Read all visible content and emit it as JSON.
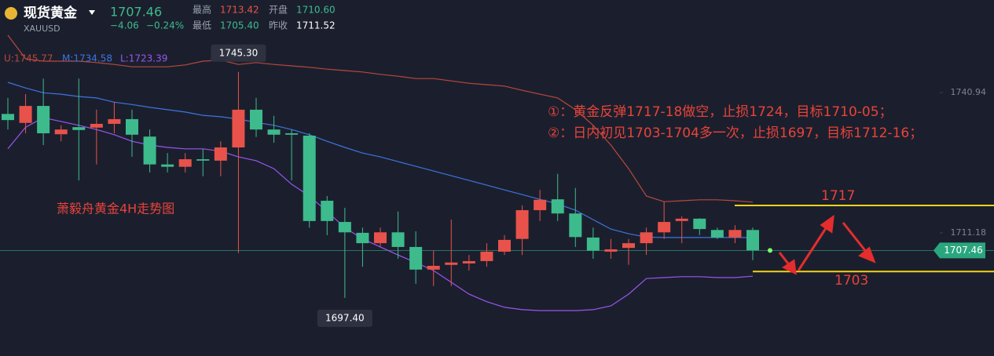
{
  "header": {
    "name": "现货黄金",
    "symbol": "XAUUSD",
    "price": "1707.46",
    "change": "−4.06",
    "change_pct": "−0.24%",
    "high_label": "最高",
    "high": "1713.42",
    "open_label": "开盘",
    "open": "1710.60",
    "low_label": "最低",
    "low": "1705.40",
    "prev_label": "昨收",
    "prev": "1711.52"
  },
  "chart_data": {
    "type": "candlestick",
    "title": "萧毅舟黄金4H走势图",
    "up_color": "#e8524a",
    "down_color": "#3dbb8c",
    "ylim": [
      1685.08,
      1760.56
    ],
    "yticks": [
      1740.94,
      1711.18
    ],
    "open": [
      1736.4,
      1734.5,
      1738.1,
      1732.1,
      1733.6,
      1733.5,
      1734.3,
      1735.3,
      1731.6,
      1725.7,
      1725.2,
      1726.8,
      1726.5,
      1729.3,
      1737.3,
      1733.1,
      1732.3,
      1731.8,
      1718.0,
      1713.5,
      1711.2,
      1709.0,
      1711.3,
      1708.2,
      1703.4,
      1704.4,
      1704.7,
      1705.2,
      1707.2,
      1709.9,
      1716.0,
      1718.3,
      1715.3,
      1710.2,
      1707.2,
      1708.0,
      1709.0,
      1711.3,
      1713.7,
      1714.2,
      1711.8,
      1710.2,
      1711.8
    ],
    "high": [
      1739.8,
      1740.6,
      1743.9,
      1734.0,
      1743.9,
      1737.3,
      1738.9,
      1737.3,
      1733.1,
      1728.1,
      1728.1,
      1729.0,
      1730.6,
      1745.3,
      1739.8,
      1736.0,
      1733.1,
      1732.3,
      1719.0,
      1716.5,
      1712.3,
      1712.3,
      1715.7,
      1711.5,
      1707.4,
      1714.0,
      1706.5,
      1709.0,
      1710.7,
      1717.0,
      1720.3,
      1723.7,
      1720.7,
      1712.3,
      1709.9,
      1709.9,
      1712.3,
      1717.8,
      1714.7,
      1714.3,
      1712.3,
      1712.8,
      1712.3
    ],
    "low": [
      1733.1,
      1732.3,
      1729.8,
      1730.6,
      1722.3,
      1725.7,
      1732.3,
      1727.3,
      1724.0,
      1724.0,
      1724.0,
      1723.2,
      1723.2,
      1706.9,
      1731.5,
      1730.3,
      1722.3,
      1712.3,
      1710.7,
      1697.4,
      1704.0,
      1708.2,
      1705.7,
      1700.4,
      1699.9,
      1699.9,
      1703.2,
      1704.0,
      1706.5,
      1706.5,
      1713.7,
      1713.7,
      1708.2,
      1705.7,
      1705.7,
      1704.4,
      1706.5,
      1709.9,
      1709.0,
      1710.7,
      1709.9,
      1709.0,
      1705.4
    ],
    "close": [
      1735.1,
      1738.1,
      1732.3,
      1733.1,
      1733.0,
      1734.3,
      1735.3,
      1732.0,
      1725.7,
      1725.2,
      1726.8,
      1726.5,
      1729.3,
      1737.3,
      1733.1,
      1732.0,
      1732.0,
      1713.7,
      1713.7,
      1711.3,
      1709.0,
      1711.3,
      1708.2,
      1703.4,
      1704.2,
      1704.9,
      1705.2,
      1707.2,
      1709.7,
      1716.0,
      1718.2,
      1715.3,
      1710.3,
      1707.4,
      1707.7,
      1709.0,
      1711.3,
      1713.5,
      1714.2,
      1712.0,
      1710.2,
      1711.8,
      1707.46
    ],
    "high_label": "1745.30",
    "low_label": "1697.40",
    "last_label": "1707.46",
    "series": [
      {
        "label": "U:1745.77",
        "color": "#b8483c",
        "values": [
          1753.1,
          1748.1,
          1747.6,
          1747.6,
          1747.6,
          1747.3,
          1746.9,
          1746.4,
          1746.4,
          1746.4,
          1746.8,
          1747.6,
          1747.8,
          1746.9,
          1747.3,
          1746.9,
          1746.6,
          1746.3,
          1745.9,
          1745.6,
          1745.3,
          1744.8,
          1744.4,
          1743.9,
          1743.9,
          1743.4,
          1742.9,
          1742.6,
          1742.3,
          1741.4,
          1740.6,
          1739.8,
          1737.3,
          1734.0,
          1729.8,
          1724.8,
          1719.0,
          1717.8,
          1718.0,
          1718.2,
          1718.2,
          1718.0,
          1717.7
        ]
      },
      {
        "label": "M:1734.58",
        "color": "#3d74e0",
        "values": [
          1743.1,
          1741.9,
          1740.9,
          1740.6,
          1740.1,
          1739.8,
          1738.9,
          1738.4,
          1737.8,
          1737.3,
          1736.8,
          1736.1,
          1735.8,
          1735.3,
          1734.6,
          1734.0,
          1733.1,
          1732.0,
          1730.6,
          1729.3,
          1728.1,
          1727.3,
          1726.3,
          1725.3,
          1724.3,
          1723.3,
          1722.3,
          1721.3,
          1720.3,
          1719.3,
          1718.3,
          1717.3,
          1716.0,
          1714.0,
          1712.0,
          1711.0,
          1710.3,
          1710.2,
          1710.2,
          1710.2,
          1710.2,
          1710.2,
          1710.2
        ]
      },
      {
        "label": "L:1723.39",
        "color": "#9a55f0",
        "values": [
          1729.0,
          1733.6,
          1735.6,
          1734.8,
          1734.0,
          1733.1,
          1732.0,
          1730.6,
          1729.8,
          1729.3,
          1729.0,
          1729.0,
          1728.5,
          1727.3,
          1726.5,
          1724.8,
          1721.5,
          1719.0,
          1715.7,
          1712.3,
          1709.9,
          1708.2,
          1706.5,
          1704.9,
          1703.2,
          1700.7,
          1698.2,
          1696.6,
          1695.4,
          1694.9,
          1694.7,
          1694.7,
          1694.7,
          1694.9,
          1695.7,
          1698.2,
          1701.5,
          1701.7,
          1701.9,
          1701.9,
          1701.7,
          1701.7,
          1702.0
        ]
      }
    ],
    "levels": [
      1717,
      1703
    ],
    "level_color": "#f2d21b",
    "annotations": [
      "①：黄金反弹1717-18做空，止损1724，目标1710-05；",
      "②：日内初见1703-1704多一次，止损1697，目标1712-16；"
    ]
  }
}
